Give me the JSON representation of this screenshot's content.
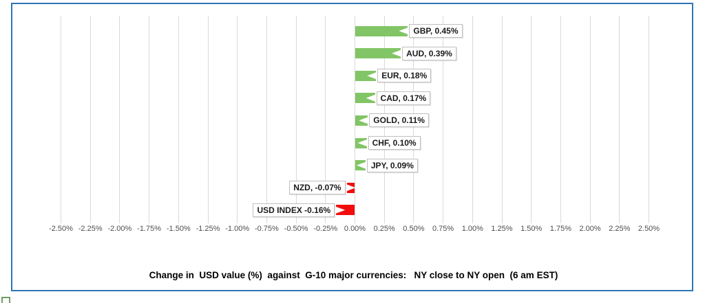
{
  "frame": {
    "border_color": "#2e75b6"
  },
  "chart_data": {
    "type": "bar",
    "orientation": "horizontal",
    "title": "Change in  USD value (%)  against  G-10 major currencies:   NY close to NY open  (6 am EST)",
    "categories": [
      "GBP",
      "AUD",
      "EUR",
      "CAD",
      "GOLD",
      "CHF",
      "JPY",
      "NZD",
      "USD INDEX"
    ],
    "values": [
      0.45,
      0.39,
      0.18,
      0.17,
      0.11,
      0.1,
      0.09,
      -0.07,
      -0.16
    ],
    "data_labels": [
      "GBP, 0.45%",
      "AUD, 0.39%",
      "EUR, 0.18%",
      "CAD, 0.17%",
      "GOLD, 0.11%",
      "CHF, 0.10%",
      "JPY, 0.09%",
      "NZD, -0.07%",
      "USD INDEX -0.16%"
    ],
    "positive_color": "#82c566",
    "negative_color": "#f20d0d",
    "xlim": [
      -2.5,
      2.5
    ],
    "tick_step": 0.25,
    "x_ticks": [
      "-2.50%",
      "-2.25%",
      "-2.00%",
      "-1.75%",
      "-1.50%",
      "-1.25%",
      "-1.00%",
      "-0.75%",
      "-0.50%",
      "-0.25%",
      "0.00%",
      "0.25%",
      "0.50%",
      "0.75%",
      "1.00%",
      "1.25%",
      "1.50%",
      "1.75%",
      "2.00%",
      "2.25%",
      "2.50%"
    ],
    "grid": true,
    "gridline_color": "#d9d9d9",
    "legend": "none",
    "label_style": "callout"
  }
}
